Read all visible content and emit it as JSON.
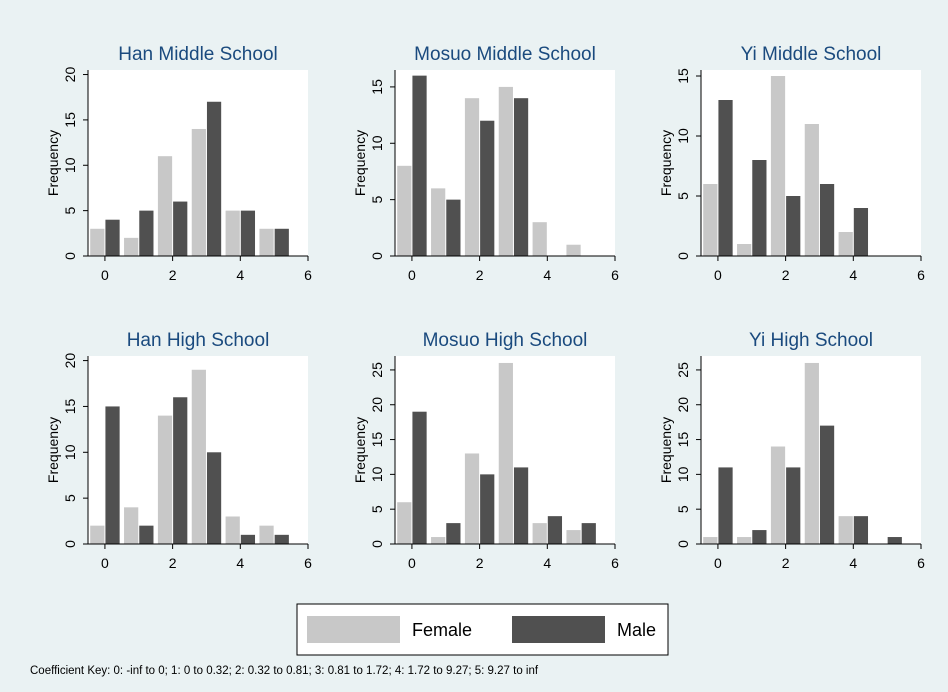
{
  "figure": {
    "legend": {
      "female": "Female",
      "male": "Male"
    },
    "note": "Coefficient Key: 0: -inf to 0; 1: 0 to 0.32; 2: 0.32 to 0.81; 3: 0.81 to 1.72; 4: 1.72 to 9.27; 5: 9.27 to inf"
  },
  "colors": {
    "background": "#eaf2f3",
    "female": "#c8c8c8",
    "male": "#505050",
    "axis": "#000000"
  },
  "chart_data": [
    {
      "type": "bar",
      "title": "Han Middle School",
      "ylabel": "Frequency",
      "xlabel": "",
      "x": [
        0,
        1,
        2,
        3,
        4,
        5
      ],
      "xticks": [
        0,
        2,
        4,
        6
      ],
      "yticks": [
        0,
        5,
        10,
        15,
        20
      ],
      "xlim": [
        -0.5,
        6
      ],
      "ylim": [
        0,
        20.5
      ],
      "series": [
        {
          "name": "Female",
          "values": [
            3,
            2,
            11,
            14,
            5,
            3
          ]
        },
        {
          "name": "Male",
          "values": [
            4,
            5,
            6,
            17,
            5,
            3
          ]
        }
      ]
    },
    {
      "type": "bar",
      "title": "Mosuo Middle School",
      "ylabel": "Frequency",
      "xlabel": "",
      "x": [
        0,
        1,
        2,
        3,
        4,
        5
      ],
      "xticks": [
        0,
        2,
        4,
        6
      ],
      "yticks": [
        0,
        5,
        10,
        15
      ],
      "xlim": [
        -0.5,
        6
      ],
      "ylim": [
        0,
        16.5
      ],
      "series": [
        {
          "name": "Female",
          "values": [
            8,
            6,
            14,
            15,
            3,
            1
          ]
        },
        {
          "name": "Male",
          "values": [
            16,
            5,
            12,
            14,
            0,
            0
          ]
        }
      ]
    },
    {
      "type": "bar",
      "title": "Yi Middle School",
      "ylabel": "Frequency",
      "xlabel": "",
      "x": [
        0,
        1,
        2,
        3,
        4,
        5
      ],
      "xticks": [
        0,
        2,
        4,
        6
      ],
      "yticks": [
        0,
        5,
        10,
        15
      ],
      "xlim": [
        -0.5,
        6
      ],
      "ylim": [
        0,
        15.5
      ],
      "series": [
        {
          "name": "Female",
          "values": [
            6,
            1,
            15,
            11,
            2,
            0
          ]
        },
        {
          "name": "Male",
          "values": [
            13,
            8,
            5,
            6,
            4,
            0
          ]
        }
      ]
    },
    {
      "type": "bar",
      "title": "Han High School",
      "ylabel": "Frequency",
      "xlabel": "",
      "x": [
        0,
        1,
        2,
        3,
        4,
        5
      ],
      "xticks": [
        0,
        2,
        4,
        6
      ],
      "yticks": [
        0,
        5,
        10,
        15,
        20
      ],
      "xlim": [
        -0.5,
        6
      ],
      "ylim": [
        0,
        20.5
      ],
      "series": [
        {
          "name": "Female",
          "values": [
            2,
            4,
            14,
            19,
            3,
            2
          ]
        },
        {
          "name": "Male",
          "values": [
            15,
            2,
            16,
            10,
            1,
            1
          ]
        }
      ]
    },
    {
      "type": "bar",
      "title": "Mosuo High School",
      "ylabel": "Frequency",
      "xlabel": "",
      "x": [
        0,
        1,
        2,
        3,
        4,
        5
      ],
      "xticks": [
        0,
        2,
        4,
        6
      ],
      "yticks": [
        0,
        5,
        10,
        15,
        20,
        25
      ],
      "xlim": [
        -0.5,
        6
      ],
      "ylim": [
        0,
        27
      ],
      "series": [
        {
          "name": "Female",
          "values": [
            6,
            1,
            13,
            26,
            3,
            2
          ]
        },
        {
          "name": "Male",
          "values": [
            19,
            3,
            10,
            11,
            4,
            3
          ]
        }
      ]
    },
    {
      "type": "bar",
      "title": "Yi High School",
      "ylabel": "Frequency",
      "xlabel": "",
      "x": [
        0,
        1,
        2,
        3,
        4,
        5
      ],
      "xticks": [
        0,
        2,
        4,
        6
      ],
      "yticks": [
        0,
        5,
        10,
        15,
        20,
        25
      ],
      "xlim": [
        -0.5,
        6
      ],
      "ylim": [
        0,
        27
      ],
      "series": [
        {
          "name": "Female",
          "values": [
            1,
            1,
            14,
            26,
            4,
            0
          ]
        },
        {
          "name": "Male",
          "values": [
            11,
            2,
            11,
            17,
            4,
            1
          ]
        }
      ]
    }
  ]
}
